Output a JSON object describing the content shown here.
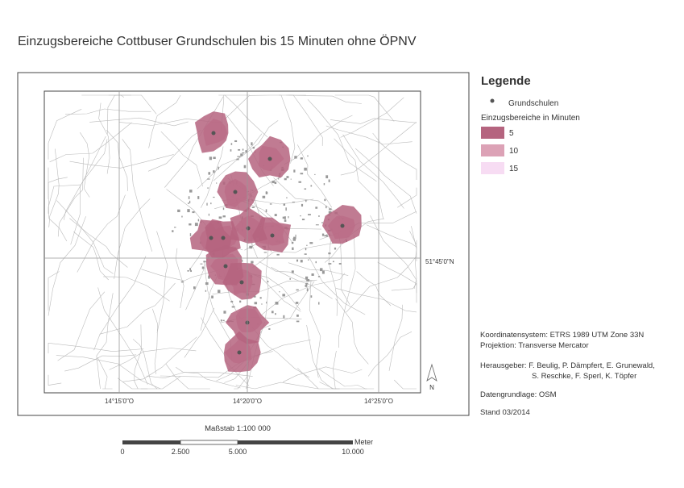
{
  "title": "Einzugsbereiche Cottbuser Grundschulen bis 15 Minuten ohne ÖPNV",
  "map": {
    "x_labels": [
      "14°15'0\"O",
      "14°20'0\"O",
      "14°25'0\"O"
    ],
    "y_labels": [
      "51°45'0\"N"
    ],
    "north_label": "N"
  },
  "legend": {
    "title": "Legende",
    "school_label": "Grundschulen",
    "areas_title": "Einzugsbereiche in Minuten",
    "classes": [
      {
        "label": "5",
        "color": "#b5647f"
      },
      {
        "label": "10",
        "color": "#dca2b6"
      },
      {
        "label": "15",
        "color": "#f7dcf3"
      }
    ]
  },
  "info": {
    "crs": "Koordinatensystem: ETRS 1989 UTM Zone 33N",
    "projection": "Projektion: Transverse Mercator",
    "publisher": [
      "Herausgeber: F. Beulig, P. Dämpfert, E. Grunewald,",
      "S. Reschke, F. Sperl, K. Töpfer"
    ],
    "data_source": "Datengrundlage: OSM",
    "date": "Stand 03/2014"
  },
  "scale": {
    "label": "Maßstab 1:100 000",
    "unit": "Meter",
    "ticks": [
      "0",
      "2.500",
      "5.000",
      "10.000"
    ]
  }
}
